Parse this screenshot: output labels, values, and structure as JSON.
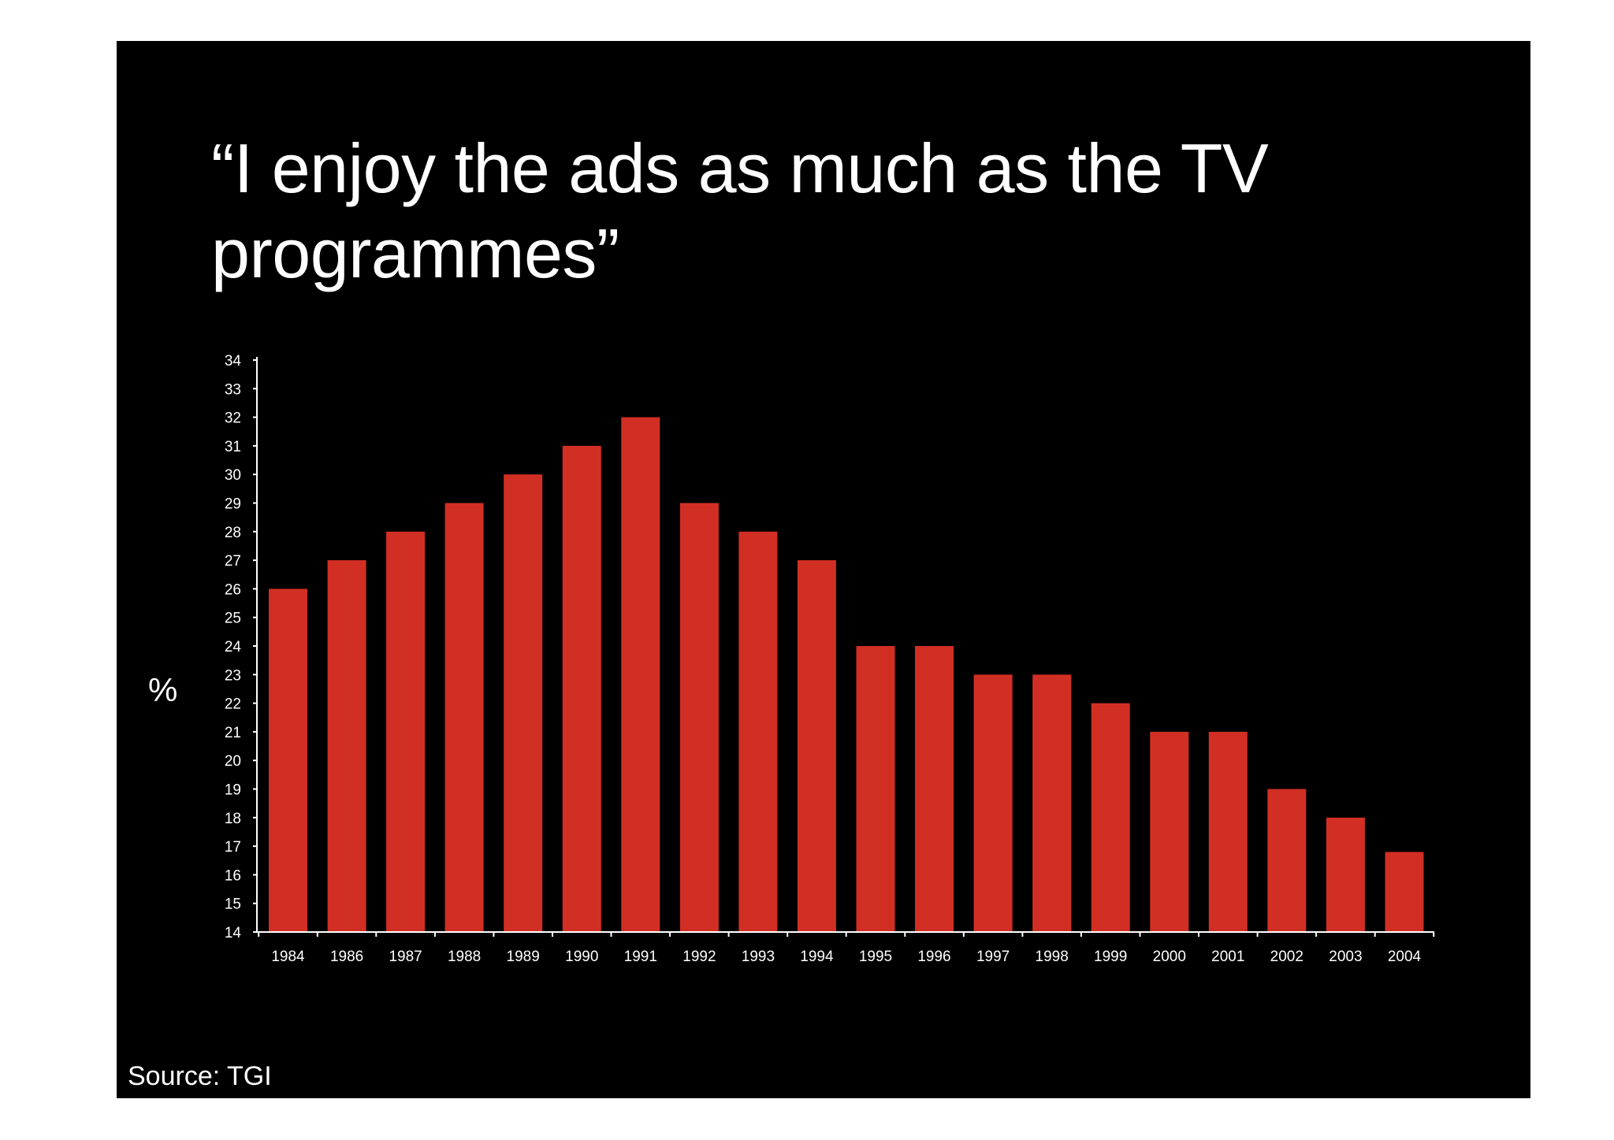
{
  "slide": {
    "title": "“I enjoy the ads as much as the TV programmes”",
    "source": "Source: TGI",
    "background": "#000000"
  },
  "chart_data": {
    "type": "bar",
    "title": "“I enjoy the ads as much as the TV programmes”",
    "xlabel": "",
    "ylabel": "%",
    "ylim": [
      14,
      34
    ],
    "yticks": [
      14,
      15,
      16,
      17,
      18,
      19,
      20,
      21,
      22,
      23,
      24,
      25,
      26,
      27,
      28,
      29,
      30,
      31,
      32,
      33,
      34
    ],
    "categories": [
      "1984",
      "1986",
      "1987",
      "1988",
      "1989",
      "1990",
      "1991",
      "1992",
      "1993",
      "1994",
      "1995",
      "1996",
      "1997",
      "1998",
      "1999",
      "2000",
      "2001",
      "2002",
      "2003",
      "2004"
    ],
    "values": [
      26,
      27,
      28,
      29,
      30,
      31,
      32,
      29,
      28,
      27,
      24,
      24,
      23,
      23,
      22,
      21,
      21,
      19,
      18,
      16.8
    ],
    "bar_color": "#d22f24",
    "axis_color": "#ffffff",
    "grid": false,
    "legend": "none",
    "source": "Source: TGI"
  }
}
